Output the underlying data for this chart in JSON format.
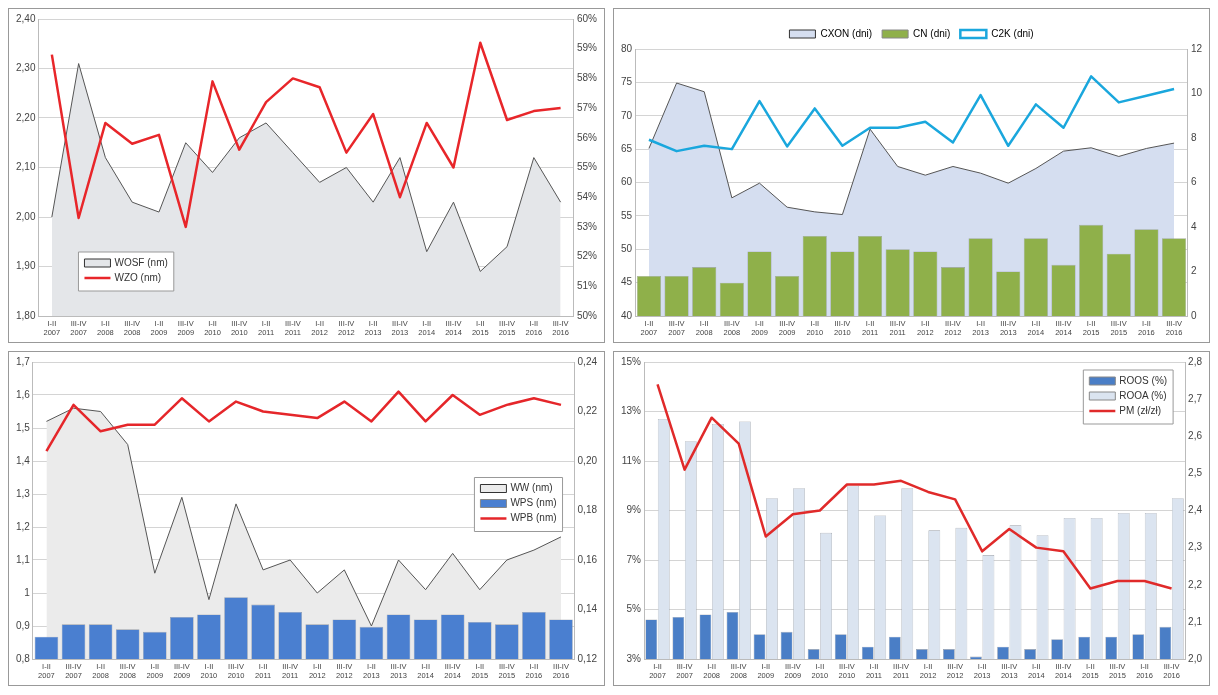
{
  "chart_data": [
    {
      "type": "line",
      "categories": [
        "I-II 2007",
        "III-IV 2007",
        "I-II 2008",
        "III-IV 2008",
        "I-II 2009",
        "III-IV 2009",
        "I-II 2010",
        "III-IV 2010",
        "I-II 2011",
        "III-IV 2011",
        "I-II 2012",
        "III-IV 2012",
        "I-II 2013",
        "III-IV 2013",
        "I-II 2014",
        "III-IV 2014",
        "I-II 2015",
        "III-IV 2015",
        "I-II 2016",
        "III-IV 2016"
      ],
      "series": [
        {
          "name": "WOSF (nm)",
          "type": "area",
          "color": "#e4e6e9",
          "values": [
            2.0,
            2.31,
            2.12,
            2.03,
            2.01,
            2.15,
            2.09,
            2.16,
            2.19,
            2.13,
            2.07,
            2.1,
            2.03,
            2.12,
            1.93,
            2.03,
            1.89,
            1.94,
            2.12,
            2.03
          ]
        },
        {
          "name": "WZO (nm)",
          "color": "#e8262a",
          "axis": "y2",
          "values": [
            58.8,
            53.3,
            56.5,
            55.8,
            56.1,
            53.0,
            57.9,
            55.6,
            57.2,
            58.0,
            57.7,
            55.5,
            56.8,
            54.0,
            56.5,
            55.0,
            59.2,
            56.6,
            56.9,
            57.0
          ]
        }
      ],
      "ylim": [
        1.8,
        2.4
      ],
      "yticks": [
        {
          "value": 1.8,
          "label": "1,80"
        },
        {
          "value": 1.9,
          "label": "1,90"
        },
        {
          "value": 2.0,
          "label": "2,00"
        },
        {
          "value": 2.1,
          "label": "2,10"
        },
        {
          "value": 2.2,
          "label": "2,20"
        },
        {
          "value": 2.3,
          "label": "2,30"
        },
        {
          "value": 2.4,
          "label": "2,40"
        }
      ],
      "y2lim": [
        50,
        60
      ],
      "y2ticks": [
        {
          "value": 50,
          "label": "50%"
        },
        {
          "value": 51,
          "label": "51%"
        },
        {
          "value": 52,
          "label": "52%"
        },
        {
          "value": 53,
          "label": "53%"
        },
        {
          "value": 54,
          "label": "54%"
        },
        {
          "value": 55,
          "label": "55%"
        },
        {
          "value": 56,
          "label": "56%"
        },
        {
          "value": 57,
          "label": "57%"
        },
        {
          "value": 58,
          "label": "58%"
        },
        {
          "value": 59,
          "label": "59%"
        },
        {
          "value": 60,
          "label": "60%"
        }
      ],
      "grid": "y",
      "legend": "bottom left"
    },
    {
      "type": "bar",
      "categories": [
        "I-II 2007",
        "III-IV 2007",
        "I-II 2008",
        "III-IV 2008",
        "I-II 2009",
        "III-IV 2009",
        "I-II 2010",
        "III-IV 2010",
        "I-II 2011",
        "III-IV 2011",
        "I-II 2012",
        "III-IV 2012",
        "I-II 2013",
        "III-IV 2013",
        "I-II 2014",
        "III-IV 2014",
        "I-II 2015",
        "III-IV 2015",
        "I-II 2016",
        "III-IV 2016"
      ],
      "series": [
        {
          "name": "CXON (dni)",
          "type": "area",
          "color": "#d5def0",
          "values": [
            65.1,
            74.9,
            73.6,
            57.7,
            59.9,
            56.3,
            55.6,
            55.2,
            68.0,
            62.4,
            61.1,
            62.4,
            61.4,
            59.9,
            62.1,
            64.7,
            65.2,
            63.9,
            65.1,
            65.9
          ]
        },
        {
          "name": "CN (dni)",
          "color": "#8fb04a",
          "axis": "y2",
          "values": [
            1.8,
            1.8,
            2.2,
            1.5,
            2.9,
            1.8,
            3.6,
            2.9,
            3.6,
            3.0,
            2.9,
            2.2,
            3.5,
            2.0,
            3.5,
            2.3,
            4.1,
            2.8,
            3.9,
            3.5
          ]
        },
        {
          "name": "C2K (dni)",
          "type": "line",
          "color": "#1aa7dd",
          "values": [
            66.4,
            64.7,
            65.5,
            65.0,
            72.2,
            65.4,
            71.1,
            65.5,
            68.2,
            68.2,
            69.1,
            66.0,
            73.1,
            65.5,
            71.7,
            68.2,
            75.9,
            72.0,
            73.0,
            74.0
          ]
        }
      ],
      "ylim": [
        40,
        80
      ],
      "yticks": [
        40,
        45,
        50,
        55,
        60,
        65,
        70,
        75,
        80
      ],
      "y2lim": [
        0,
        12
      ],
      "y2ticks": [
        0,
        2,
        4,
        6,
        8,
        10,
        12
      ],
      "grid": "y",
      "legend": "top"
    },
    {
      "type": "bar",
      "categories": [
        "I-II 2007",
        "III-IV 2007",
        "I-II 2008",
        "III-IV 2008",
        "I-II 2009",
        "III-IV 2009",
        "I-II 2010",
        "III-IV 2010",
        "I-II 2011",
        "III-IV 2011",
        "I-II 2012",
        "III-IV 2012",
        "I-II 2013",
        "III-IV 2013",
        "I-II 2014",
        "III-IV 2014",
        "I-II 2015",
        "III-IV 2015",
        "I-II 2016",
        "III-IV 2016"
      ],
      "series": [
        {
          "name": "WW (nm)",
          "type": "area",
          "color": "#ebebeb",
          "values": [
            1.52,
            1.56,
            1.55,
            1.45,
            1.06,
            1.29,
            0.98,
            1.27,
            1.07,
            1.1,
            1.0,
            1.07,
            0.9,
            1.1,
            1.01,
            1.12,
            1.01,
            1.1,
            1.13,
            1.17
          ]
        },
        {
          "name": "WPS (nm)",
          "color": "#4a7fd0",
          "axis": "y2",
          "values": [
            0.129,
            0.134,
            0.134,
            0.132,
            0.131,
            0.137,
            0.138,
            0.145,
            0.142,
            0.139,
            0.134,
            0.136,
            0.133,
            0.138,
            0.136,
            0.138,
            0.135,
            0.134,
            0.139,
            0.136
          ]
        },
        {
          "name": "WPB (nm)",
          "type": "line",
          "color": "#e5262a",
          "values": [
            1.43,
            1.57,
            1.49,
            1.51,
            1.51,
            1.59,
            1.52,
            1.58,
            1.55,
            1.54,
            1.53,
            1.58,
            1.52,
            1.61,
            1.52,
            1.6,
            1.54,
            1.57,
            1.59,
            1.57
          ]
        }
      ],
      "ylim": [
        0.8,
        1.7
      ],
      "yticks": [
        {
          "value": 0.8,
          "label": "0,8"
        },
        {
          "value": 0.9,
          "label": "0,9"
        },
        1,
        {
          "value": 1.1,
          "label": "1,1"
        },
        {
          "value": 1.2,
          "label": "1,2"
        },
        {
          "value": 1.3,
          "label": "1,3"
        },
        {
          "value": 1.4,
          "label": "1,4"
        },
        {
          "value": 1.5,
          "label": "1,5"
        },
        {
          "value": 1.6,
          "label": "1,6"
        },
        {
          "value": 1.7,
          "label": "1,7"
        }
      ],
      "y2lim": [
        0.12,
        0.24
      ],
      "y2ticks": [
        {
          "value": 0.12,
          "label": "0,12"
        },
        {
          "value": 0.14,
          "label": "0,14"
        },
        {
          "value": 0.16,
          "label": "0,16"
        },
        {
          "value": 0.18,
          "label": "0,18"
        },
        {
          "value": 0.2,
          "label": "0,20"
        },
        {
          "value": 0.22,
          "label": "0,22"
        },
        {
          "value": 0.24,
          "label": "0,24"
        }
      ],
      "grid": "y",
      "legend": "right"
    },
    {
      "type": "bar",
      "categories": [
        "I-II 2007",
        "III-IV 2007",
        "I-II 2008",
        "III-IV 2008",
        "I-II 2009",
        "III-IV 2009",
        "I-II 2010",
        "III-IV 2010",
        "I-II 2011",
        "III-IV 2011",
        "I-II 2012",
        "III-IV 2012",
        "I-II 2013",
        "III-IV 2013",
        "I-II 2014",
        "III-IV 2014",
        "I-II 2015",
        "III-IV 2015",
        "I-II 2016",
        "III-IV 2016"
      ],
      "series": [
        {
          "name": "ROOS (%)",
          "color": "#4a7ec6",
          "values": [
            4.6,
            4.7,
            4.8,
            4.9,
            4.0,
            4.1,
            3.4,
            4.0,
            3.5,
            3.9,
            3.4,
            3.4,
            3.1,
            3.5,
            3.4,
            3.8,
            3.9,
            3.9,
            4.0,
            4.3
          ]
        },
        {
          "name": "ROOA (%)",
          "color": "#dbe4f0",
          "values": [
            12.7,
            11.8,
            12.5,
            12.6,
            9.5,
            9.9,
            8.1,
            10.0,
            8.8,
            9.9,
            8.2,
            8.3,
            7.2,
            8.4,
            8.0,
            8.7,
            8.7,
            8.9,
            8.9,
            9.5
          ]
        },
        {
          "name": "PM (zł/zł)",
          "type": "line",
          "color": "#e02a2a",
          "axis": "y2",
          "values": [
            2.74,
            2.51,
            2.65,
            2.58,
            2.33,
            2.39,
            2.4,
            2.47,
            2.47,
            2.48,
            2.45,
            2.43,
            2.29,
            2.35,
            2.3,
            2.29,
            2.19,
            2.21,
            2.21,
            2.19
          ]
        }
      ],
      "ylim": [
        3,
        15
      ],
      "yticks": [
        {
          "value": 3,
          "label": "3%"
        },
        {
          "value": 5,
          "label": "5%"
        },
        {
          "value": 7,
          "label": "7%"
        },
        {
          "value": 9,
          "label": "9%"
        },
        {
          "value": 11,
          "label": "11%"
        },
        {
          "value": 13,
          "label": "13%"
        },
        {
          "value": 15,
          "label": "15%"
        }
      ],
      "y2lim": [
        2.0,
        2.8
      ],
      "y2ticks": [
        {
          "value": 2.0,
          "label": "2,0"
        },
        {
          "value": 2.1,
          "label": "2,1"
        },
        {
          "value": 2.2,
          "label": "2,2"
        },
        {
          "value": 2.3,
          "label": "2,3"
        },
        {
          "value": 2.4,
          "label": "2,4"
        },
        {
          "value": 2.5,
          "label": "2,5"
        },
        {
          "value": 2.6,
          "label": "2,6"
        },
        {
          "value": 2.7,
          "label": "2,7"
        },
        {
          "value": 2.8,
          "label": "2,8"
        }
      ],
      "grid": "y",
      "legend": "top right"
    }
  ]
}
